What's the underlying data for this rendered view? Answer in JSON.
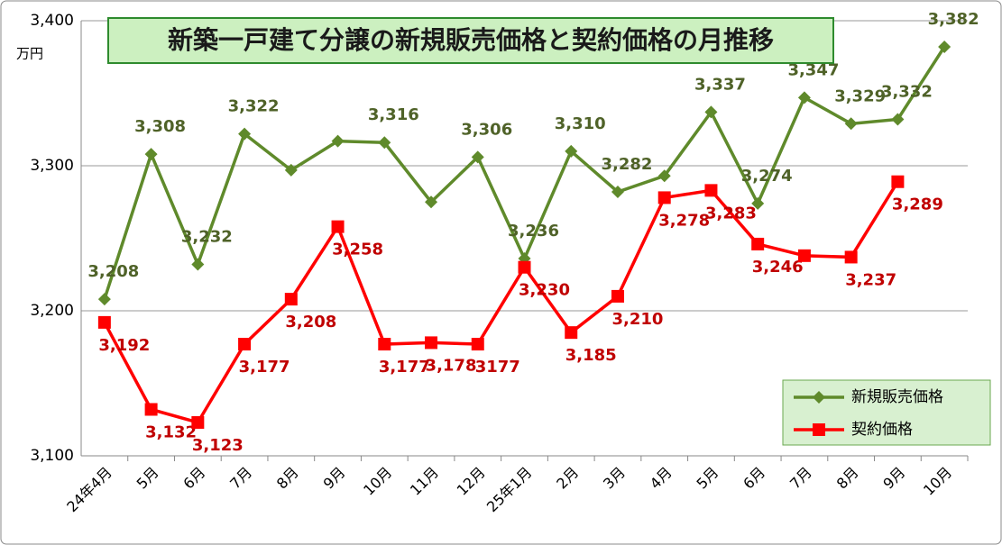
{
  "chart_data": {
    "type": "line",
    "title": "新築一戸建て分譲の新規販売価格と契約価格の月推移",
    "y_unit": "万円",
    "categories": [
      "24年4月",
      "5月",
      "6月",
      "7月",
      "8月",
      "9月",
      "10月",
      "11月",
      "12月",
      "25年1月",
      "2月",
      "3月",
      "4月",
      "5月",
      "6月",
      "7月",
      "8月",
      "9月",
      "10月"
    ],
    "series": [
      {
        "name": "新規販売価格",
        "color": "#5f8a2b",
        "marker": "diamond",
        "values": [
          3208,
          3308,
          3232,
          3322,
          3297,
          3317,
          3316,
          3275,
          3306,
          3236,
          3310,
          3282,
          3293,
          3337,
          3274,
          3347,
          3329,
          3332,
          3382
        ],
        "value_labels": [
          "3,208",
          "3,308",
          "3,232",
          "3,322",
          null,
          null,
          "3,316",
          null,
          "3,306",
          "3,236",
          "3,310",
          "3,282",
          null,
          "3,337",
          "3,274",
          "3,347",
          "3,329",
          "3,332",
          "3,382"
        ]
      },
      {
        "name": "契約価格",
        "color": "#ff0000",
        "marker": "square",
        "values": [
          3192,
          3132,
          3123,
          3177,
          3208,
          3258,
          3177,
          3178,
          3177,
          3230,
          3185,
          3210,
          3278,
          3283,
          3246,
          3238,
          3237,
          3289,
          null
        ],
        "value_labels": [
          "3,192",
          "3,132",
          "3,123",
          "3,177",
          "3,208",
          "3,258",
          "3,177",
          "3,178",
          "3177",
          "3,230",
          "3,185",
          "3,210",
          "3,278",
          "3,283",
          "3,246",
          null,
          "3,237",
          "3,289",
          null
        ]
      }
    ],
    "ylim": [
      3100,
      3400
    ],
    "yticks": [
      {
        "value": 3100,
        "label": "3,100"
      },
      {
        "value": 3200,
        "label": "3,200"
      },
      {
        "value": 3300,
        "label": "3,300"
      },
      {
        "value": 3400,
        "label": "3,400"
      }
    ],
    "grid": true,
    "legend": "lower right"
  }
}
